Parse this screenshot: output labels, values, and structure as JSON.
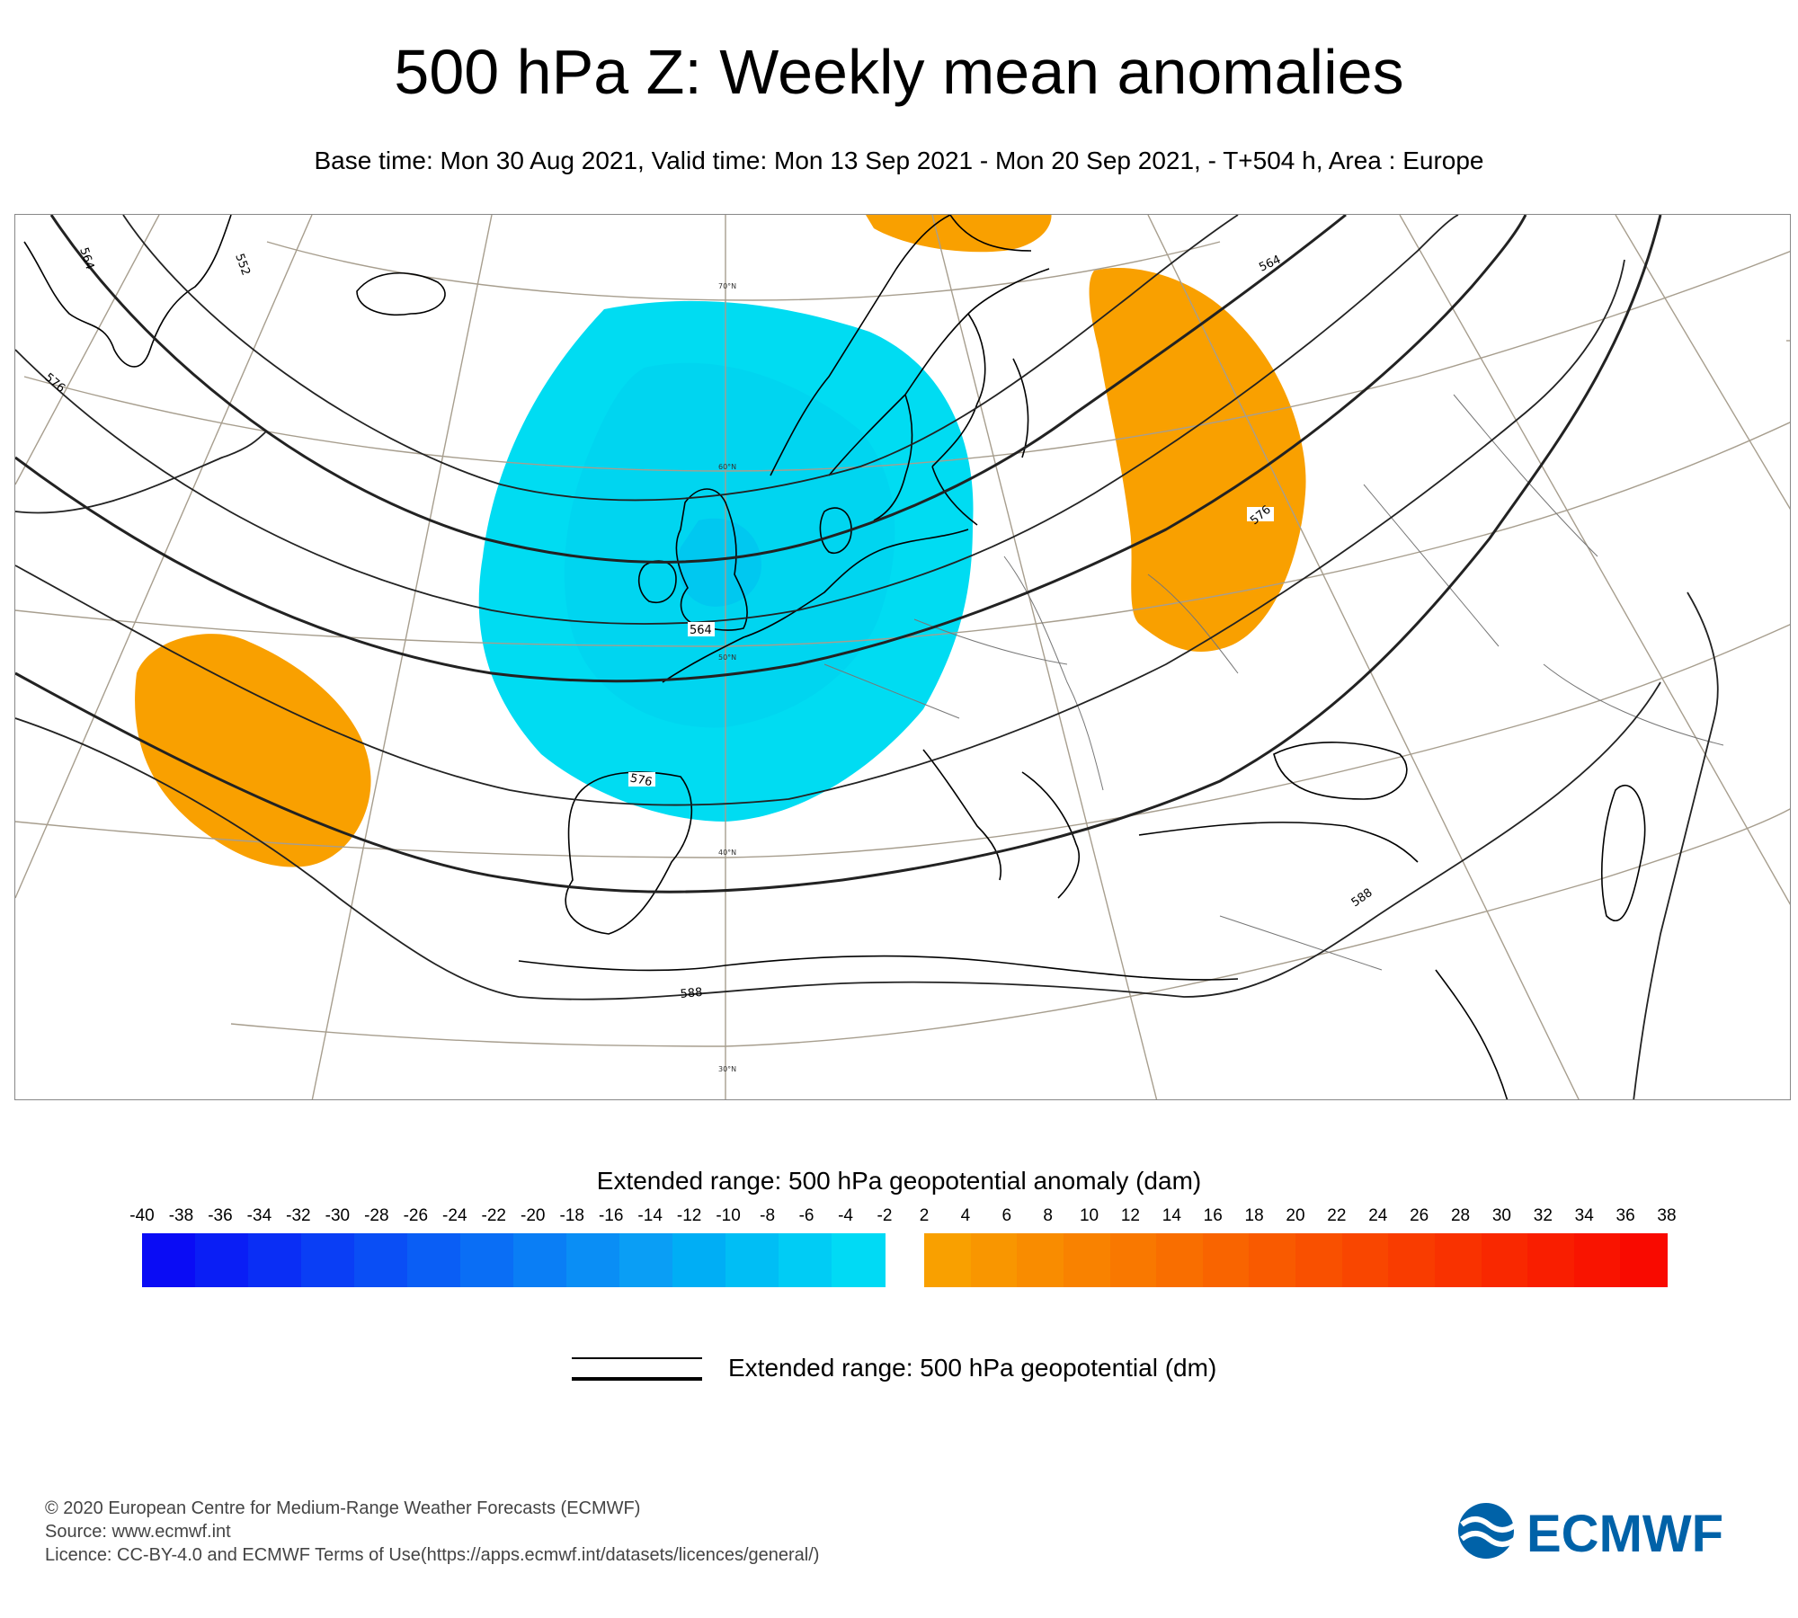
{
  "header": {
    "title": "500 hPa Z: Weekly mean anomalies",
    "subtitle": "Base time: Mon 30 Aug 2021, Valid time: Mon 13 Sep 2021 - Mon 20 Sep 2021, - T+504 h, Area : Europe"
  },
  "map": {
    "area": "Europe",
    "latitude_labels": [
      "70°N",
      "60°N",
      "50°N",
      "40°N",
      "30°N"
    ],
    "contour_labels": [
      "564",
      "552",
      "576",
      "564",
      "576",
      "576",
      "564",
      "588",
      "588"
    ],
    "anomaly_regions": [
      {
        "name": "negative-anomaly-west-europe",
        "color": "#00d8f0",
        "sign": "negative"
      },
      {
        "name": "positive-anomaly-eastern-europe",
        "color": "#f9a000",
        "sign": "positive"
      },
      {
        "name": "positive-anomaly-atlantic",
        "color": "#f9a000",
        "sign": "positive"
      },
      {
        "name": "positive-anomaly-north",
        "color": "#f9a000",
        "sign": "positive"
      }
    ]
  },
  "anomaly_legend": {
    "title": "Extended range: 500 hPa geopotential anomaly (dam)",
    "negative_ticks": [
      "-40",
      "-38",
      "-36",
      "-34",
      "-32",
      "-30",
      "-28",
      "-26",
      "-24",
      "-22",
      "-20",
      "-18",
      "-16",
      "-14",
      "-12",
      "-10",
      "-8",
      "-6",
      "-4",
      "-2"
    ],
    "positive_ticks": [
      "2",
      "4",
      "6",
      "8",
      "10",
      "12",
      "14",
      "16",
      "18",
      "20",
      "22",
      "24",
      "26",
      "28",
      "30",
      "32",
      "34",
      "36",
      "38"
    ],
    "negative_colors": [
      "#0a0cf5",
      "#0a1ef5",
      "#0a2ef5",
      "#0a3ef5",
      "#0a4ef5",
      "#0a5ef5",
      "#0a6ef5",
      "#0a7ef5",
      "#0a8ef5",
      "#0a9ef5",
      "#00aef5",
      "#00bef5",
      "#00ccf5",
      "#00daf5"
    ],
    "positive_colors": [
      "#f9a000",
      "#f99600",
      "#f98c00",
      "#f98200",
      "#f97800",
      "#f96e00",
      "#f96400",
      "#f95a00",
      "#f95000",
      "#f94600",
      "#f93c00",
      "#f93200",
      "#f92800",
      "#f91e00",
      "#f91400",
      "#f90a00"
    ]
  },
  "geopotential_legend": {
    "label": "Extended range: 500 hPa geopotential (dm)"
  },
  "footer": {
    "copyright": "© 2020 European Centre for Medium-Range Weather Forecasts (ECMWF)",
    "source": "Source: www.ecmwf.int",
    "licence": "Licence: CC-BY-4.0 and ECMWF Terms of Use(https://apps.ecmwf.int/datasets/licences/general/)",
    "logo_text": "ECMWF",
    "logo_color": "#0062a8"
  }
}
